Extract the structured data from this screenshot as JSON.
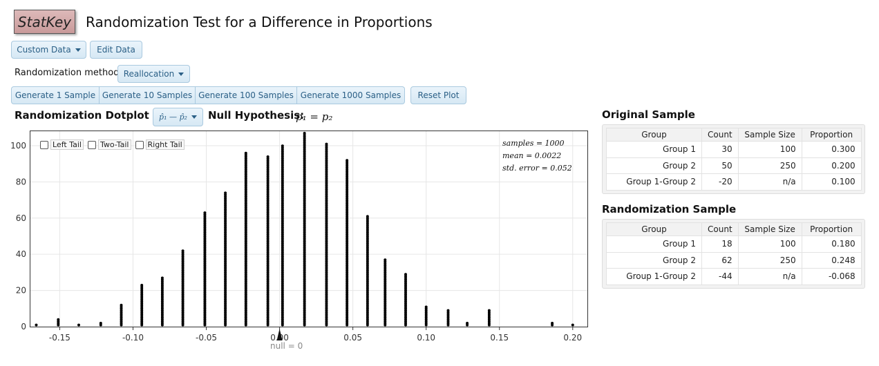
{
  "app": {
    "logo": "StatKey",
    "title": "Randomization Test for a Difference in Proportions"
  },
  "toolbar": {
    "custom_data_label": "Custom Data",
    "edit_data_label": "Edit Data"
  },
  "method": {
    "label": "Randomization method",
    "value": "Reallocation"
  },
  "generate_buttons": [
    "Generate 1 Sample",
    "Generate 10 Samples",
    "Generate 100 Samples",
    "Generate 1000 Samples"
  ],
  "reset_label": "Reset Plot",
  "dotplot": {
    "title": "Randomization Dotplot of",
    "statistic_selector": "p̂₁ — p̂₂",
    "null_label": "Null Hypothesis:",
    "null_expr": "p₁ = p₂",
    "tail_options": [
      "Left Tail",
      "Two-Tail",
      "Right Tail"
    ],
    "stats": {
      "samples": "samples = 1000",
      "mean": "mean = 0.0022",
      "std_error": "std. error = 0.052"
    },
    "null_marker": "null = 0"
  },
  "chart_data": {
    "type": "scatter",
    "x_ticks": [
      "-0.15",
      "-0.10",
      "-0.05",
      "0.00",
      "0.05",
      "0.10",
      "0.15",
      "0.20"
    ],
    "y_ticks": [
      "0",
      "20",
      "40",
      "60",
      "80",
      "100"
    ],
    "xlim": [
      -0.17,
      0.21
    ],
    "ylim": [
      0,
      108
    ],
    "grid": true,
    "columns": [
      {
        "x": -0.166,
        "count": 1
      },
      {
        "x": -0.151,
        "count": 4
      },
      {
        "x": -0.137,
        "count": 1
      },
      {
        "x": -0.122,
        "count": 2
      },
      {
        "x": -0.108,
        "count": 12
      },
      {
        "x": -0.094,
        "count": 23
      },
      {
        "x": -0.08,
        "count": 27
      },
      {
        "x": -0.066,
        "count": 42
      },
      {
        "x": -0.051,
        "count": 63
      },
      {
        "x": -0.037,
        "count": 74
      },
      {
        "x": -0.023,
        "count": 96
      },
      {
        "x": -0.008,
        "count": 94
      },
      {
        "x": 0.002,
        "count": 100
      },
      {
        "x": 0.017,
        "count": 107
      },
      {
        "x": 0.032,
        "count": 101
      },
      {
        "x": 0.046,
        "count": 92
      },
      {
        "x": 0.06,
        "count": 61
      },
      {
        "x": 0.072,
        "count": 37
      },
      {
        "x": 0.086,
        "count": 29
      },
      {
        "x": 0.1,
        "count": 11
      },
      {
        "x": 0.115,
        "count": 9
      },
      {
        "x": 0.128,
        "count": 2
      },
      {
        "x": 0.143,
        "count": 9
      },
      {
        "x": 0.186,
        "count": 2
      },
      {
        "x": 0.2,
        "count": 1
      }
    ]
  },
  "original": {
    "title": "Original Sample",
    "headers": [
      "Group",
      "Count",
      "Sample Size",
      "Proportion"
    ],
    "rows": [
      [
        "Group 1",
        "30",
        "100",
        "0.300"
      ],
      [
        "Group 2",
        "50",
        "250",
        "0.200"
      ],
      [
        "Group 1-Group 2",
        "-20",
        "n/a",
        "0.100"
      ]
    ]
  },
  "randomization": {
    "title": "Randomization Sample",
    "headers": [
      "Group",
      "Count",
      "Sample Size",
      "Proportion"
    ],
    "rows": [
      [
        "Group 1",
        "18",
        "100",
        "0.180"
      ],
      [
        "Group 2",
        "62",
        "250",
        "0.248"
      ],
      [
        "Group 1-Group 2",
        "-44",
        "n/a",
        "-0.068"
      ]
    ]
  }
}
